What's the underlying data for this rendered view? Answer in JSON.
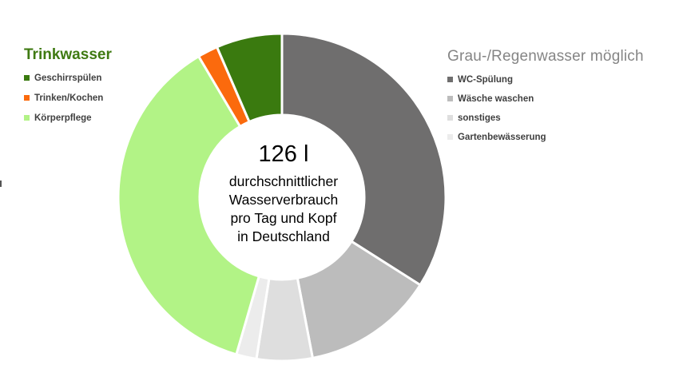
{
  "chart_data": {
    "type": "pie",
    "donut": true,
    "center": {
      "value": "126 l",
      "caption_lines": [
        "durchschnittlicher",
        "Wasserverbrauch",
        "pro Tag und Kopf",
        "in Deutschland"
      ]
    },
    "groups": [
      {
        "title": "Trinkwasser",
        "color": "#3f7a12",
        "entries": [
          "Geschirrspülen",
          "Trinken/Kochen",
          "Körperpflege"
        ]
      },
      {
        "title": "Grau-/Regenwasser möglich",
        "color": "#858585",
        "entries": [
          "WC-Spülung",
          "Wäsche waschen",
          "sonstiges",
          "Gartenbewässerung"
        ]
      }
    ],
    "slices": [
      {
        "label": "WC-Spülung",
        "value": 34,
        "color": "#6f6e6e"
      },
      {
        "label": "Wäsche waschen",
        "value": 13,
        "color": "#bcbcbc"
      },
      {
        "label": "sonstiges",
        "value": 5.5,
        "color": "#dedede"
      },
      {
        "label": "Gartenbewässerung",
        "value": 2,
        "color": "#ececec"
      },
      {
        "label": "Körperpflege",
        "value": 37,
        "color": "#b2f386"
      },
      {
        "label": "Trinken/Kochen",
        "value": 2,
        "color": "#fb6a0d"
      },
      {
        "label": "Geschirrspülen",
        "value": 6.5,
        "color": "#3a7a0f"
      }
    ]
  },
  "legend_left": {
    "title": "Trinkwasser",
    "items": [
      {
        "label": "Geschirrspülen",
        "color": "#3a7a0f"
      },
      {
        "label": "Trinken/Kochen",
        "color": "#fb6a0d"
      },
      {
        "label": "Körperpflege",
        "color": "#b2f386"
      }
    ]
  },
  "legend_right": {
    "title": "Grau-/Regenwasser möglich",
    "items": [
      {
        "label": "WC-Spülung",
        "color": "#6f6e6e"
      },
      {
        "label": "Wäsche waschen",
        "color": "#bcbcbc"
      },
      {
        "label": "sonstiges",
        "color": "#dedede"
      },
      {
        "label": "Gartenbewässerung",
        "color": "#ececec"
      }
    ]
  }
}
